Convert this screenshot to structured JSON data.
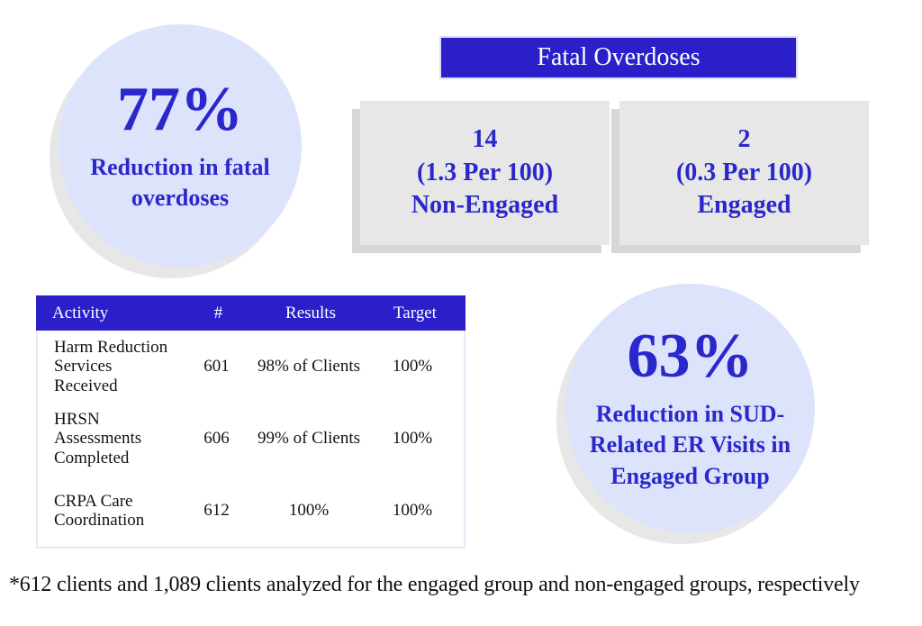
{
  "colors": {
    "accent_blue": "#2a1fc9",
    "text_blue": "#2b28cb",
    "circle_fill": "#dde3fb",
    "circle_shadow": "#e7e7e7",
    "card_fill": "#e7e7e7",
    "card_shadow": "#d7d7d7",
    "table_border": "#e3eaf7",
    "body_text": "#141414",
    "background": "#ffffff"
  },
  "overdose_circle": {
    "value": "77%",
    "label_lines": {
      "0": "Reduction in fatal",
      "1": "overdoses"
    }
  },
  "er_circle": {
    "value": "63%",
    "label_lines": {
      "0": "Reduction in SUD-",
      "1": "Related ER Visits in",
      "2": "Engaged Group"
    }
  },
  "fatal_overdoses": {
    "title": "Fatal Overdoses",
    "cards": [
      {
        "count": "14",
        "rate": "(1.3 Per 100)",
        "group": "Non-Engaged"
      },
      {
        "count": "2",
        "rate": "(0.3 Per 100)",
        "group": "Engaged"
      }
    ]
  },
  "activity_table": {
    "headers": [
      "Activity",
      "#",
      "Results",
      "Target"
    ],
    "rows": [
      {
        "activity_lines": {
          "0": "Harm Reduction",
          "1": "Services Received"
        },
        "count": "601",
        "results": "98% of Clients",
        "target": "100%"
      },
      {
        "activity_lines": {
          "0": "HRSN Assessments",
          "1": "Completed"
        },
        "count": "606",
        "results": "99% of Clients",
        "target": "100%"
      },
      {
        "activity_lines": {
          "0": "CRPA Care",
          "1": "Coordination"
        },
        "count": "612",
        "results": "100%",
        "target": "100%"
      }
    ]
  },
  "footnote": "*612 clients and 1,089 clients analyzed for the engaged group and non-engaged groups, respectively",
  "chart_data": [
    {
      "type": "bar",
      "title": "Fatal Overdoses",
      "categories": [
        "Non-Engaged",
        "Engaged"
      ],
      "values": [
        14,
        2
      ],
      "rates_per_100": [
        1.3,
        0.3
      ],
      "annotations": [
        "77% Reduction in fatal overdoses",
        "63% Reduction in SUD-Related ER Visits in Engaged Group"
      ]
    },
    {
      "type": "table",
      "title": "Activity Results vs Target",
      "columns": [
        "Activity",
        "#",
        "Results",
        "Target"
      ],
      "rows": [
        [
          "Harm Reduction Services Received",
          601,
          "98% of Clients",
          "100%"
        ],
        [
          "HRSN Assessments Completed",
          606,
          "99% of Clients",
          "100%"
        ],
        [
          "CRPA Care Coordination",
          612,
          "100%",
          "100%"
        ]
      ]
    }
  ]
}
